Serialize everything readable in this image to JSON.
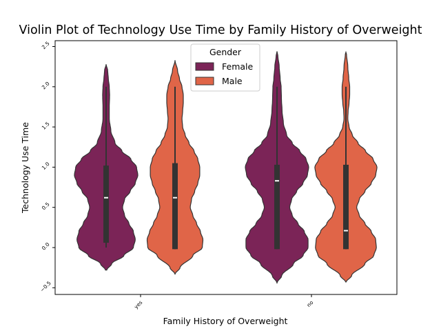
{
  "chart_data": {
    "type": "violin",
    "title": "Violin Plot of Technology Use Time by Family History of Overweight",
    "xlabel": "Family History of Overweight",
    "ylabel": "Technology Use Time",
    "categories": [
      "yes",
      "no"
    ],
    "ylim": [
      -0.55,
      2.6
    ],
    "yticks": [
      -0.5,
      0.0,
      0.5,
      1.0,
      1.5,
      2.0,
      2.5
    ],
    "ytick_labels": [
      "−0.5",
      "0.0",
      "0.5",
      "1.0",
      "1.5",
      "2.0",
      "2.5"
    ],
    "legend": {
      "title": "Gender",
      "position": "top-center"
    },
    "series": [
      {
        "name": "Female",
        "color": "#7b2457",
        "groups": [
          {
            "category": "yes",
            "range": [
              -0.28,
              2.28
            ],
            "whisker": [
              0.0,
              2.0
            ],
            "q1": 0.06,
            "median": 0.62,
            "q3": 1.02,
            "density": [
              [
                -0.28,
                0.02
              ],
              [
                -0.2,
                0.18
              ],
              [
                -0.1,
                0.56
              ],
              [
                0.0,
                0.86
              ],
              [
                0.1,
                0.92
              ],
              [
                0.2,
                0.86
              ],
              [
                0.3,
                0.72
              ],
              [
                0.4,
                0.58
              ],
              [
                0.5,
                0.52
              ],
              [
                0.6,
                0.58
              ],
              [
                0.7,
                0.76
              ],
              [
                0.8,
                0.92
              ],
              [
                0.9,
                1.0
              ],
              [
                1.0,
                0.96
              ],
              [
                1.1,
                0.78
              ],
              [
                1.2,
                0.5
              ],
              [
                1.3,
                0.28
              ],
              [
                1.45,
                0.15
              ],
              [
                1.6,
                0.1
              ],
              [
                1.75,
                0.1
              ],
              [
                1.9,
                0.11
              ],
              [
                2.0,
                0.1
              ],
              [
                2.1,
                0.07
              ],
              [
                2.2,
                0.05
              ],
              [
                2.28,
                0.0
              ]
            ]
          },
          {
            "category": "no",
            "range": [
              -0.44,
              2.44
            ],
            "whisker": [
              -0.02,
              2.0
            ],
            "q1": -0.02,
            "median": 0.83,
            "q3": 1.03,
            "density": [
              [
                -0.44,
                0.0
              ],
              [
                -0.35,
                0.15
              ],
              [
                -0.2,
                0.52
              ],
              [
                -0.1,
                0.82
              ],
              [
                0.0,
                0.98
              ],
              [
                0.1,
                0.98
              ],
              [
                0.2,
                0.86
              ],
              [
                0.3,
                0.66
              ],
              [
                0.4,
                0.48
              ],
              [
                0.5,
                0.4
              ],
              [
                0.6,
                0.46
              ],
              [
                0.7,
                0.62
              ],
              [
                0.8,
                0.82
              ],
              [
                0.9,
                0.96
              ],
              [
                1.0,
                1.0
              ],
              [
                1.1,
                0.92
              ],
              [
                1.2,
                0.72
              ],
              [
                1.3,
                0.48
              ],
              [
                1.4,
                0.3
              ],
              [
                1.55,
                0.2
              ],
              [
                1.7,
                0.16
              ],
              [
                1.85,
                0.14
              ],
              [
                2.0,
                0.13
              ],
              [
                2.1,
                0.1
              ],
              [
                2.25,
                0.07
              ],
              [
                2.38,
                0.03
              ],
              [
                2.44,
                0.0
              ]
            ]
          }
        ]
      },
      {
        "name": "Male",
        "color": "#e06548",
        "groups": [
          {
            "category": "yes",
            "range": [
              -0.33,
              2.33
            ],
            "whisker": [
              -0.02,
              2.0
            ],
            "q1": -0.02,
            "median": 0.62,
            "q3": 1.05,
            "density": [
              [
                -0.33,
                0.0
              ],
              [
                -0.25,
                0.16
              ],
              [
                -0.1,
                0.56
              ],
              [
                0.0,
                0.86
              ],
              [
                0.1,
                0.88
              ],
              [
                0.2,
                0.8
              ],
              [
                0.3,
                0.68
              ],
              [
                0.4,
                0.56
              ],
              [
                0.5,
                0.48
              ],
              [
                0.6,
                0.52
              ],
              [
                0.7,
                0.62
              ],
              [
                0.8,
                0.72
              ],
              [
                0.9,
                0.78
              ],
              [
                1.0,
                0.78
              ],
              [
                1.1,
                0.72
              ],
              [
                1.2,
                0.6
              ],
              [
                1.3,
                0.44
              ],
              [
                1.4,
                0.32
              ],
              [
                1.5,
                0.24
              ],
              [
                1.6,
                0.22
              ],
              [
                1.7,
                0.24
              ],
              [
                1.8,
                0.26
              ],
              [
                1.9,
                0.26
              ],
              [
                2.0,
                0.22
              ],
              [
                2.1,
                0.14
              ],
              [
                2.2,
                0.08
              ],
              [
                2.33,
                0.0
              ]
            ]
          },
          {
            "category": "no",
            "range": [
              -0.43,
              2.43
            ],
            "whisker": [
              -0.02,
              2.0
            ],
            "q1": -0.02,
            "median": 0.21,
            "q3": 1.03,
            "density": [
              [
                -0.43,
                0.0
              ],
              [
                -0.35,
                0.18
              ],
              [
                -0.2,
                0.6
              ],
              [
                -0.1,
                0.88
              ],
              [
                0.0,
                0.96
              ],
              [
                0.1,
                0.94
              ],
              [
                0.2,
                0.8
              ],
              [
                0.3,
                0.6
              ],
              [
                0.4,
                0.42
              ],
              [
                0.5,
                0.34
              ],
              [
                0.6,
                0.42
              ],
              [
                0.7,
                0.6
              ],
              [
                0.8,
                0.8
              ],
              [
                0.9,
                0.94
              ],
              [
                1.0,
                0.98
              ],
              [
                1.1,
                0.86
              ],
              [
                1.2,
                0.62
              ],
              [
                1.3,
                0.38
              ],
              [
                1.4,
                0.2
              ],
              [
                1.5,
                0.1
              ],
              [
                1.6,
                0.06
              ],
              [
                1.7,
                0.07
              ],
              [
                1.8,
                0.1
              ],
              [
                1.9,
                0.12
              ],
              [
                2.0,
                0.12
              ],
              [
                2.1,
                0.09
              ],
              [
                2.25,
                0.06
              ],
              [
                2.4,
                0.02
              ],
              [
                2.43,
                0.0
              ]
            ]
          }
        ]
      }
    ]
  }
}
